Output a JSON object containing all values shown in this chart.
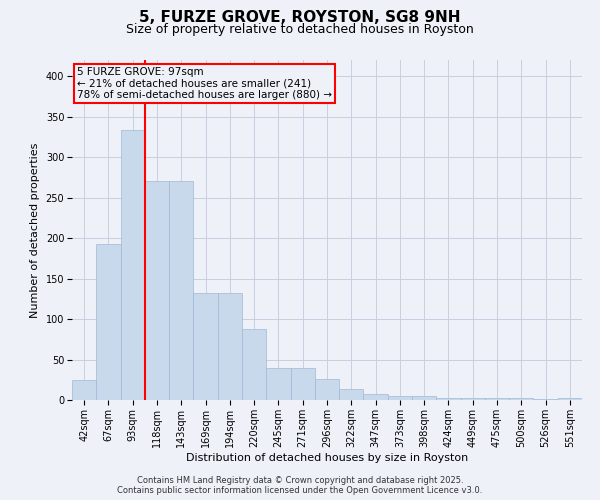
{
  "title": "5, FURZE GROVE, ROYSTON, SG8 9NH",
  "subtitle": "Size of property relative to detached houses in Royston",
  "xlabel": "Distribution of detached houses by size in Royston",
  "ylabel": "Number of detached properties",
  "categories": [
    "42sqm",
    "67sqm",
    "93sqm",
    "118sqm",
    "143sqm",
    "169sqm",
    "194sqm",
    "220sqm",
    "245sqm",
    "271sqm",
    "296sqm",
    "322sqm",
    "347sqm",
    "373sqm",
    "398sqm",
    "424sqm",
    "449sqm",
    "475sqm",
    "500sqm",
    "526sqm",
    "551sqm"
  ],
  "values": [
    25,
    193,
    333,
    270,
    270,
    132,
    132,
    88,
    40,
    40,
    26,
    14,
    8,
    5,
    5,
    2,
    2,
    2,
    2,
    1,
    2
  ],
  "bar_color": "#c9d9ec",
  "bar_edge_color": "#a0b8d8",
  "grid_color": "#c8d0e0",
  "background_color": "#eef2f8",
  "vline_x": 2.5,
  "vline_color": "red",
  "annotation_text": "5 FURZE GROVE: 97sqm\n← 21% of detached houses are smaller (241)\n78% of semi-detached houses are larger (880) →",
  "annotation_fontsize": 7.5,
  "ylim": [
    0,
    420
  ],
  "yticks": [
    0,
    50,
    100,
    150,
    200,
    250,
    300,
    350,
    400
  ],
  "footer_line1": "Contains HM Land Registry data © Crown copyright and database right 2025.",
  "footer_line2": "Contains public sector information licensed under the Open Government Licence v3.0.",
  "title_fontsize": 11,
  "subtitle_fontsize": 9,
  "label_fontsize": 8,
  "tick_fontsize": 7
}
